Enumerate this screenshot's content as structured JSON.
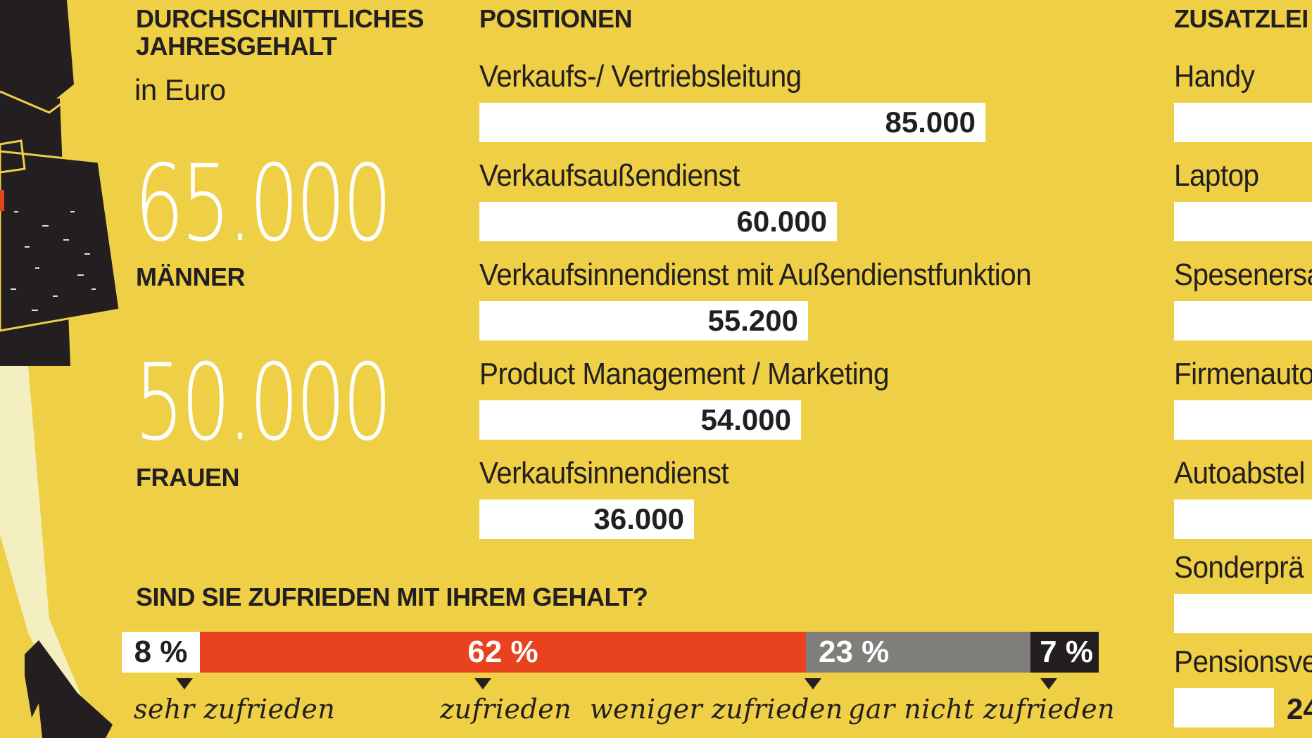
{
  "colors": {
    "background": "#EFCF45",
    "bar": "#FFFFFF",
    "text": "#231F20",
    "sehr_zufrieden": "#FFFFFF",
    "zufrieden": "#E8421F",
    "weniger_zufrieden": "#7F7E7A",
    "gar_nicht_zufrieden": "#231F20"
  },
  "salary": {
    "heading_line1": "DURCHSCHNITTLICHES",
    "heading_line2": "JAHRESGEHALT",
    "unit": "in Euro",
    "men_value": "65.000",
    "men_label": "MÄNNER",
    "women_value": "50.000",
    "women_label": "FRAUEN"
  },
  "positions": {
    "heading": "POSITIONEN"
  },
  "satisfaction": {
    "heading": "SIND SIE ZUFRIEDEN MIT IHREM GEHALT?"
  },
  "extras": {
    "heading": "ZUSATZLEI",
    "items": [
      "Handy",
      "Laptop",
      "Spesenersa",
      "Firmenauto",
      "Autoabstel",
      "Sonderprä",
      "Pensionsve"
    ],
    "last_value_partial": "24"
  },
  "chart_data": [
    {
      "type": "bar",
      "title": "POSITIONEN",
      "categories": [
        "Verkaufs-/ Vertriebsleitung",
        "Verkaufsaußendienst",
        "Verkaufsinnendienst mit Außendienstfunktion",
        "Product Management / Marketing",
        "Verkaufsinnendienst"
      ],
      "values": [
        85000,
        60000,
        55200,
        54000,
        36000
      ],
      "value_labels": [
        "85.000",
        "60.000",
        "55.200",
        "54.000",
        "36.000"
      ],
      "orientation": "horizontal"
    },
    {
      "type": "bar",
      "title": "SIND SIE ZUFRIEDEN MIT IHREM GEHALT?",
      "stacked": true,
      "categories": [
        "sehr zufrieden",
        "zufrieden",
        "weniger zufrieden",
        "gar nicht zufrieden"
      ],
      "values": [
        8,
        62,
        23,
        7
      ],
      "value_labels": [
        "8 %",
        "62 %",
        "23 %",
        "7 %"
      ]
    }
  ]
}
